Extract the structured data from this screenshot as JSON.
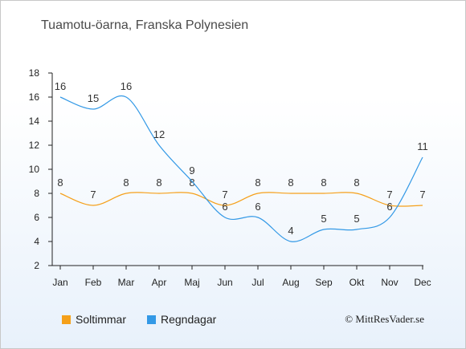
{
  "title": "Tuamotu-öarna, Franska Polynesien",
  "credit": "© MittResVader.se",
  "legend": {
    "sun": "Soltimmar",
    "rain": "Regndagar"
  },
  "colors": {
    "sun": "#f5a01a",
    "rain": "#3399e6"
  },
  "chart_data": {
    "type": "line",
    "categories": [
      "Jan",
      "Feb",
      "Mar",
      "Apr",
      "Maj",
      "Jun",
      "Jul",
      "Aug",
      "Sep",
      "Okt",
      "Nov",
      "Dec"
    ],
    "series": [
      {
        "name": "Soltimmar",
        "values": [
          8,
          7,
          8,
          8,
          8,
          7,
          8,
          8,
          8,
          8,
          7,
          7
        ]
      },
      {
        "name": "Regndagar",
        "values": [
          16,
          15,
          16,
          12,
          9,
          6,
          6,
          4,
          5,
          5,
          6,
          11
        ]
      }
    ],
    "yticks": [
      2,
      4,
      6,
      8,
      10,
      12,
      14,
      16,
      18
    ],
    "ylim": [
      2,
      18
    ],
    "grid": false,
    "legend_position": "bottom"
  }
}
